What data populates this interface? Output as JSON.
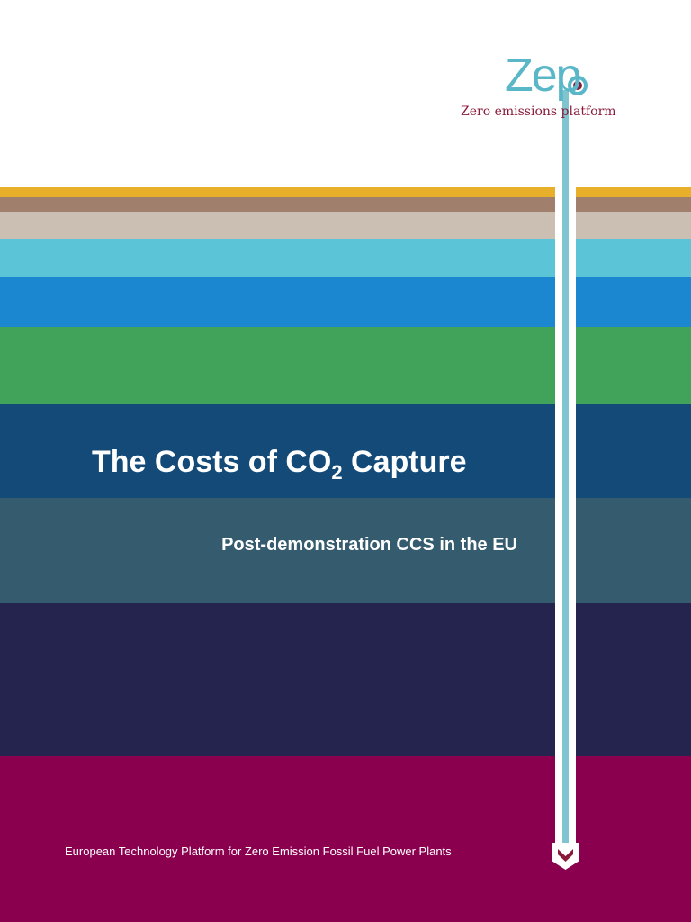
{
  "logo": {
    "wordmark": "Zep",
    "tagline": "Zero emissions platform"
  },
  "title": {
    "main": "The Costs of CO",
    "subscript": "2",
    "rest": " Capture"
  },
  "subtitle": "Post-demonstration CCS in the EU",
  "footer": "European Technology Platform for Zero Emission Fossil Fuel Power Plants"
}
